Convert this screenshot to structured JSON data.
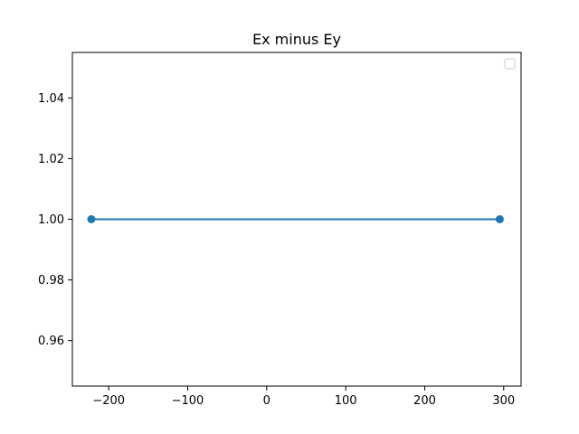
{
  "chart_data": {
    "type": "line",
    "title": "Ex minus Ey",
    "xlabel": "",
    "ylabel": "",
    "xlim": [
      -246,
      322
    ],
    "ylim": [
      0.945,
      1.055
    ],
    "x_ticks": [
      -200,
      -100,
      0,
      100,
      200,
      300
    ],
    "x_tick_labels": [
      "−200",
      "−100",
      "0",
      "100",
      "200",
      "300"
    ],
    "y_ticks": [
      0.96,
      0.98,
      1.0,
      1.02,
      1.04
    ],
    "y_tick_labels": [
      "0.96",
      "0.98",
      "1.00",
      "1.02",
      "1.04"
    ],
    "grid": false,
    "legend": {
      "position": "top-right",
      "entries": []
    },
    "series": [
      {
        "x": [
          -222,
          295
        ],
        "y": [
          1.0,
          1.0
        ],
        "color": "#1f77b4",
        "marker": "circle"
      }
    ]
  }
}
